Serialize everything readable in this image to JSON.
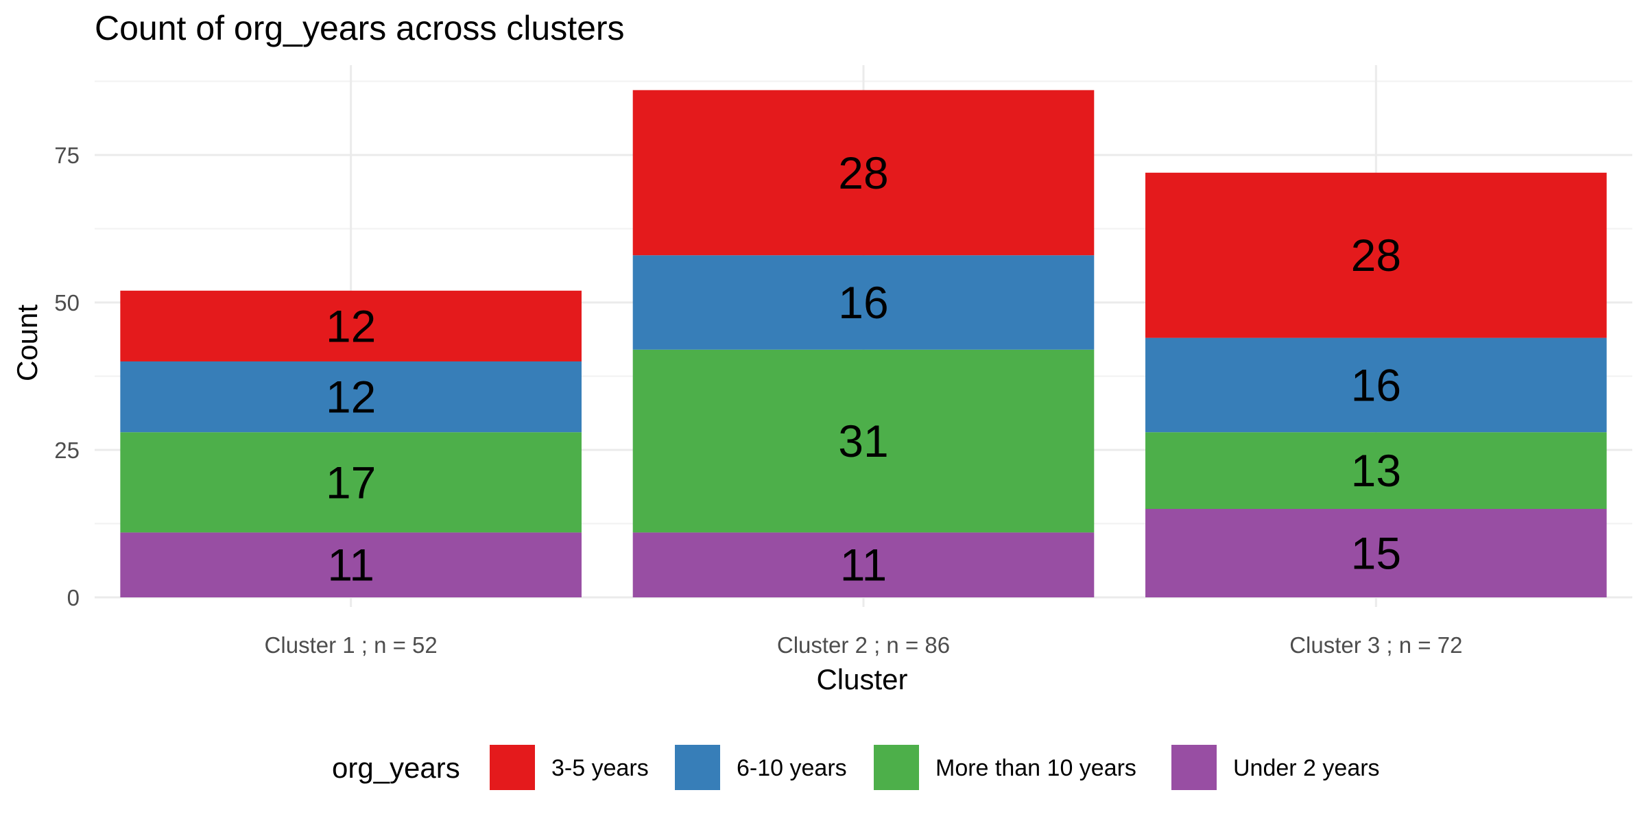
{
  "chart_data": {
    "type": "bar",
    "stacked": true,
    "title": "Count of org_years across clusters",
    "xlabel": "Cluster",
    "ylabel": "Count",
    "ylim": [
      0,
      90
    ],
    "yticks": [
      0,
      25,
      50,
      75
    ],
    "grid": true,
    "legend_position": "bottom",
    "legend_title": "org_years",
    "categories": [
      "Cluster 1 ; n = 52",
      "Cluster 2 ; n = 86",
      "Cluster 3 ; n = 72"
    ],
    "series": [
      {
        "name": "Under 2 years",
        "color": "#984EA3",
        "values": [
          11,
          11,
          15
        ]
      },
      {
        "name": "More than 10 years",
        "color": "#4DAF4A",
        "values": [
          17,
          31,
          13
        ]
      },
      {
        "name": "6-10 years",
        "color": "#377EB8",
        "values": [
          12,
          16,
          16
        ]
      },
      {
        "name": "3-5 years",
        "color": "#E41A1C",
        "values": [
          12,
          28,
          28
        ]
      }
    ],
    "legend_order": [
      "3-5 years",
      "6-10 years",
      "More than 10 years",
      "Under 2 years"
    ]
  }
}
